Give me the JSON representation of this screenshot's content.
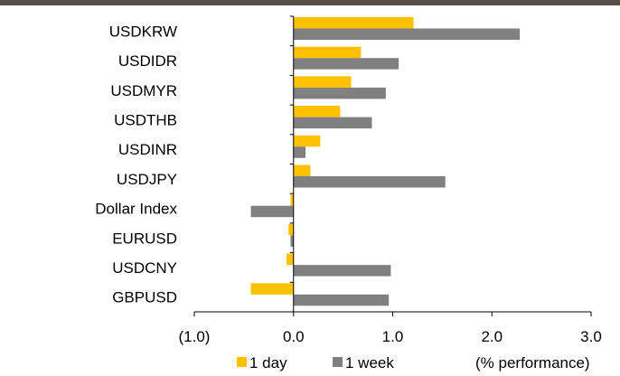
{
  "chart_data": {
    "type": "bar",
    "orientation": "horizontal",
    "categories": [
      "USDKRW",
      "USDIDR",
      "USDMYR",
      "USDTHB",
      "USDINR",
      "USDJPY",
      "Dollar Index",
      "EURUSD",
      "USDCNY",
      "GBPUSD"
    ],
    "series": [
      {
        "name": "1 day",
        "color": "#ffc000",
        "values": [
          1.21,
          0.68,
          0.58,
          0.47,
          0.27,
          0.17,
          -0.03,
          -0.05,
          -0.07,
          -0.43
        ]
      },
      {
        "name": "1 week",
        "color": "#808080",
        "values": [
          2.28,
          1.06,
          0.93,
          0.79,
          0.12,
          1.53,
          -0.43,
          -0.03,
          0.98,
          0.96
        ]
      }
    ],
    "xlim": [
      -1.0,
      3.0
    ],
    "ticks": [
      -1.0,
      0.0,
      1.0,
      2.0,
      3.0
    ],
    "tick_labels": [
      "(1.0)",
      "0.0",
      "1.0",
      "2.0",
      "3.0"
    ],
    "xlabel": "(% performance)",
    "legend": {
      "position": "bottom",
      "entries": [
        "1 day",
        "1 week"
      ]
    },
    "grid": false
  }
}
